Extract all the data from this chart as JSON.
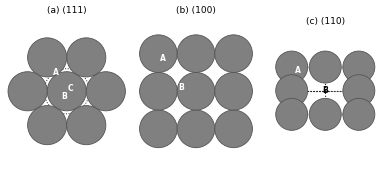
{
  "circle_color": "#808080",
  "circle_edge": "#555555",
  "line_color": "#222222",
  "panel_labels": [
    "(a) (111)",
    "(b) (100)",
    "(c) (110)"
  ],
  "fontsize": 6.5,
  "label_fontsize": 5.5
}
